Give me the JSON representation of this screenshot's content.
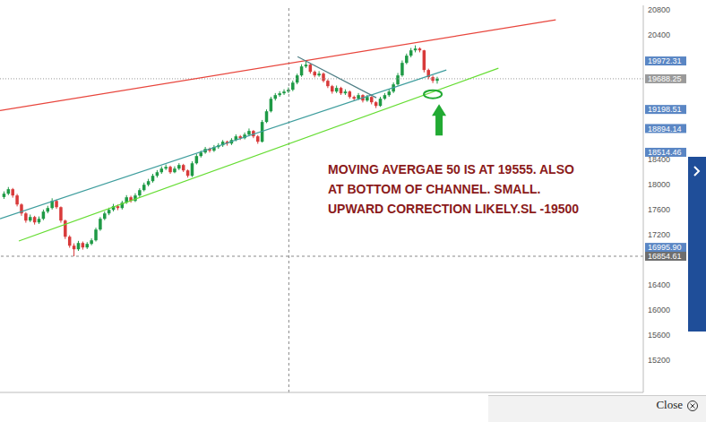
{
  "chart_data": {
    "type": "candlestick",
    "x": [
      0,
      1,
      2,
      3,
      4,
      5,
      6,
      7,
      8,
      9,
      10,
      11,
      12,
      13,
      14,
      15,
      16,
      17,
      18,
      19,
      20,
      21,
      22,
      23,
      24,
      25,
      26,
      27,
      28,
      29,
      30,
      31,
      32,
      33,
      34,
      35,
      36,
      37,
      38,
      39,
      40,
      41,
      42,
      43,
      44,
      45,
      46,
      47,
      48,
      49,
      50,
      51,
      52,
      53,
      54,
      55,
      56,
      57,
      58,
      59,
      60,
      61,
      62,
      63,
      64,
      65,
      66,
      67,
      68,
      69,
      70,
      71,
      72,
      73,
      74,
      75,
      76,
      77,
      78,
      79,
      80,
      81,
      82,
      83,
      84,
      85,
      86,
      87,
      88,
      89,
      90,
      91,
      92,
      93,
      94,
      95,
      96,
      97,
      98,
      99
    ],
    "ohlc": [
      [
        17800,
        17890,
        17770,
        17853
      ],
      [
        17853,
        17960,
        17830,
        17925
      ],
      [
        17925,
        17945,
        17790,
        17825
      ],
      [
        17825,
        17850,
        17650,
        17681
      ],
      [
        17681,
        17700,
        17500,
        17538
      ],
      [
        17538,
        17560,
        17390,
        17424
      ],
      [
        17424,
        17520,
        17400,
        17481
      ],
      [
        17481,
        17500,
        17360,
        17395
      ],
      [
        17395,
        17490,
        17370,
        17452
      ],
      [
        17452,
        17600,
        17430,
        17567
      ],
      [
        17567,
        17660,
        17540,
        17624
      ],
      [
        17624,
        17780,
        17600,
        17738
      ],
      [
        17738,
        17760,
        17610,
        17638
      ],
      [
        17638,
        17650,
        17390,
        17424
      ],
      [
        17424,
        17440,
        17130,
        17166
      ],
      [
        17166,
        17190,
        16990,
        17023
      ],
      [
        17023,
        17060,
        16854.61,
        16966
      ],
      [
        16966,
        17100,
        16940,
        17066
      ],
      [
        17066,
        17090,
        16960,
        16995
      ],
      [
        16995,
        17080,
        16970,
        17052
      ],
      [
        17052,
        17140,
        17030,
        17109
      ],
      [
        17109,
        17310,
        17090,
        17281
      ],
      [
        17281,
        17480,
        17260,
        17452
      ],
      [
        17452,
        17570,
        17430,
        17538
      ],
      [
        17538,
        17630,
        17510,
        17595
      ],
      [
        17595,
        17690,
        17570,
        17653
      ],
      [
        17653,
        17680,
        17590,
        17624
      ],
      [
        17624,
        17740,
        17600,
        17710
      ],
      [
        17710,
        17830,
        17690,
        17796
      ],
      [
        17796,
        17820,
        17710,
        17738
      ],
      [
        17738,
        17860,
        17720,
        17825
      ],
      [
        17825,
        17940,
        17800,
        17910
      ],
      [
        17910,
        18030,
        17890,
        17996
      ],
      [
        17996,
        18090,
        17970,
        18053
      ],
      [
        18053,
        18170,
        18030,
        18139
      ],
      [
        18139,
        18230,
        18110,
        18196
      ],
      [
        18196,
        18290,
        18170,
        18254
      ],
      [
        18254,
        18320,
        18230,
        18282
      ],
      [
        18282,
        18300,
        18170,
        18196
      ],
      [
        18196,
        18290,
        18180,
        18254
      ],
      [
        18254,
        18340,
        18230,
        18311
      ],
      [
        18311,
        18330,
        18200,
        18225
      ],
      [
        18225,
        18240,
        18110,
        18139
      ],
      [
        18139,
        18370,
        18120,
        18339
      ],
      [
        18339,
        18490,
        18320,
        18454
      ],
      [
        18454,
        18540,
        18430,
        18511
      ],
      [
        18511,
        18600,
        18490,
        18568
      ],
      [
        18568,
        18590,
        18510,
        18540
      ],
      [
        18540,
        18630,
        18520,
        18597
      ],
      [
        18597,
        18660,
        18570,
        18626
      ],
      [
        18626,
        18710,
        18600,
        18683
      ],
      [
        18683,
        18700,
        18620,
        18654
      ],
      [
        18654,
        18740,
        18630,
        18711
      ],
      [
        18711,
        18800,
        18690,
        18769
      ],
      [
        18769,
        18790,
        18710,
        18740
      ],
      [
        18740,
        18830,
        18720,
        18797
      ],
      [
        18797,
        18894.14,
        18770,
        18855
      ],
      [
        18855,
        18870,
        18740,
        18769
      ],
      [
        18769,
        18790,
        18650,
        18683
      ],
      [
        18683,
        19030,
        18670,
        18998
      ],
      [
        18998,
        19198.51,
        18980,
        19169
      ],
      [
        19169,
        19400,
        19150,
        19369
      ],
      [
        19369,
        19460,
        19340,
        19427
      ],
      [
        19427,
        19490,
        19400,
        19456
      ],
      [
        19456,
        19520,
        19430,
        19484
      ],
      [
        19484,
        19550,
        19460,
        19513
      ],
      [
        19513,
        19660,
        19490,
        19627
      ],
      [
        19627,
        19770,
        19600,
        19742
      ],
      [
        19742,
        19920,
        19720,
        19885
      ],
      [
        19885,
        19972.31,
        19860,
        19914
      ],
      [
        19914,
        19930,
        19770,
        19799
      ],
      [
        19799,
        19820,
        19710,
        19742
      ],
      [
        19742,
        19810,
        19720,
        19770
      ],
      [
        19770,
        19790,
        19630,
        19656
      ],
      [
        19656,
        19680,
        19540,
        19570
      ],
      [
        19570,
        19590,
        19450,
        19484
      ],
      [
        19484,
        19580,
        19460,
        19542
      ],
      [
        19542,
        19560,
        19430,
        19456
      ],
      [
        19456,
        19520,
        19430,
        19484
      ],
      [
        19484,
        19500,
        19370,
        19398
      ],
      [
        19398,
        19420,
        19340,
        19370
      ],
      [
        19370,
        19460,
        19350,
        19427
      ],
      [
        19427,
        19440,
        19310,
        19341
      ],
      [
        19341,
        19430,
        19320,
        19398
      ],
      [
        19398,
        19410,
        19280,
        19313
      ],
      [
        19313,
        19330,
        19220,
        19255
      ],
      [
        19255,
        19400,
        19240,
        19370
      ],
      [
        19370,
        19460,
        19350,
        19427
      ],
      [
        19427,
        19520,
        19400,
        19484
      ],
      [
        19484,
        19630,
        19460,
        19599
      ],
      [
        19599,
        19780,
        19580,
        19742
      ],
      [
        19742,
        19980,
        19720,
        19942
      ],
      [
        19942,
        20090,
        19920,
        20057
      ],
      [
        20057,
        20180,
        20030,
        20142
      ],
      [
        20142,
        20222,
        20110,
        20171
      ],
      [
        20171,
        20190,
        20110,
        20142
      ],
      [
        20142,
        20150,
        19790,
        19828
      ],
      [
        19828,
        19850,
        19680,
        19714
      ],
      [
        19714,
        19740,
        19620,
        19656
      ],
      [
        19656,
        19720,
        19610,
        19688.25
      ]
    ],
    "xlim": [
      -1,
      146
    ],
    "ylim": [
      14680,
      20860
    ],
    "yticks": [
      15200,
      15600,
      16000,
      16400,
      17200,
      17600,
      18000,
      18400,
      20400,
      20800
    ],
    "grid": false,
    "tick_labels": "y",
    "price_markers": [
      {
        "value": 19972.31,
        "color": "#5a86c4"
      },
      {
        "value": 19688.25,
        "color": "#9a9a9a"
      },
      {
        "value": 19198.51,
        "color": "#5a86c4"
      },
      {
        "value": 18894.14,
        "color": "#5a86c4"
      },
      {
        "value": 18514.46,
        "color": "#5a86c4"
      },
      {
        "value": 16995.9,
        "label": "16995.90",
        "color": "#5a86c4"
      },
      {
        "value": 16854.61,
        "color": "#6e6e6e"
      }
    ],
    "trend_lines": [
      {
        "color": "#e8453c",
        "points": [
          [
            -1,
            19180
          ],
          [
            126,
            20630
          ]
        ]
      },
      {
        "color": "#66dd33",
        "points": [
          [
            3.3,
            17097
          ],
          [
            112.9,
            19857
          ]
        ]
      },
      {
        "color": "#3f9e9e",
        "points": [
          [
            -1,
            17454
          ],
          [
            101,
            19828
          ]
        ]
      },
      {
        "color": "#4f7f86",
        "points": [
          [
            67,
            20042
          ],
          [
            85,
            19385
          ]
        ]
      }
    ],
    "price_line": 19688.25,
    "crosshair": {
      "x": 65,
      "y": 16854.61
    },
    "highlight": {
      "x": 97.9,
      "y": 19441
    },
    "annotation": {
      "lines": [
        "MOVING AVERGAE 50 IS AT 19555. ALSO",
        "AT BOTTOM OF CHANNEL. SMALL.",
        "UPWARD CORRECTION LIKELY.SL -19500"
      ],
      "color": "#8b1a1a"
    }
  },
  "overlay": {
    "close_label": "Close"
  }
}
